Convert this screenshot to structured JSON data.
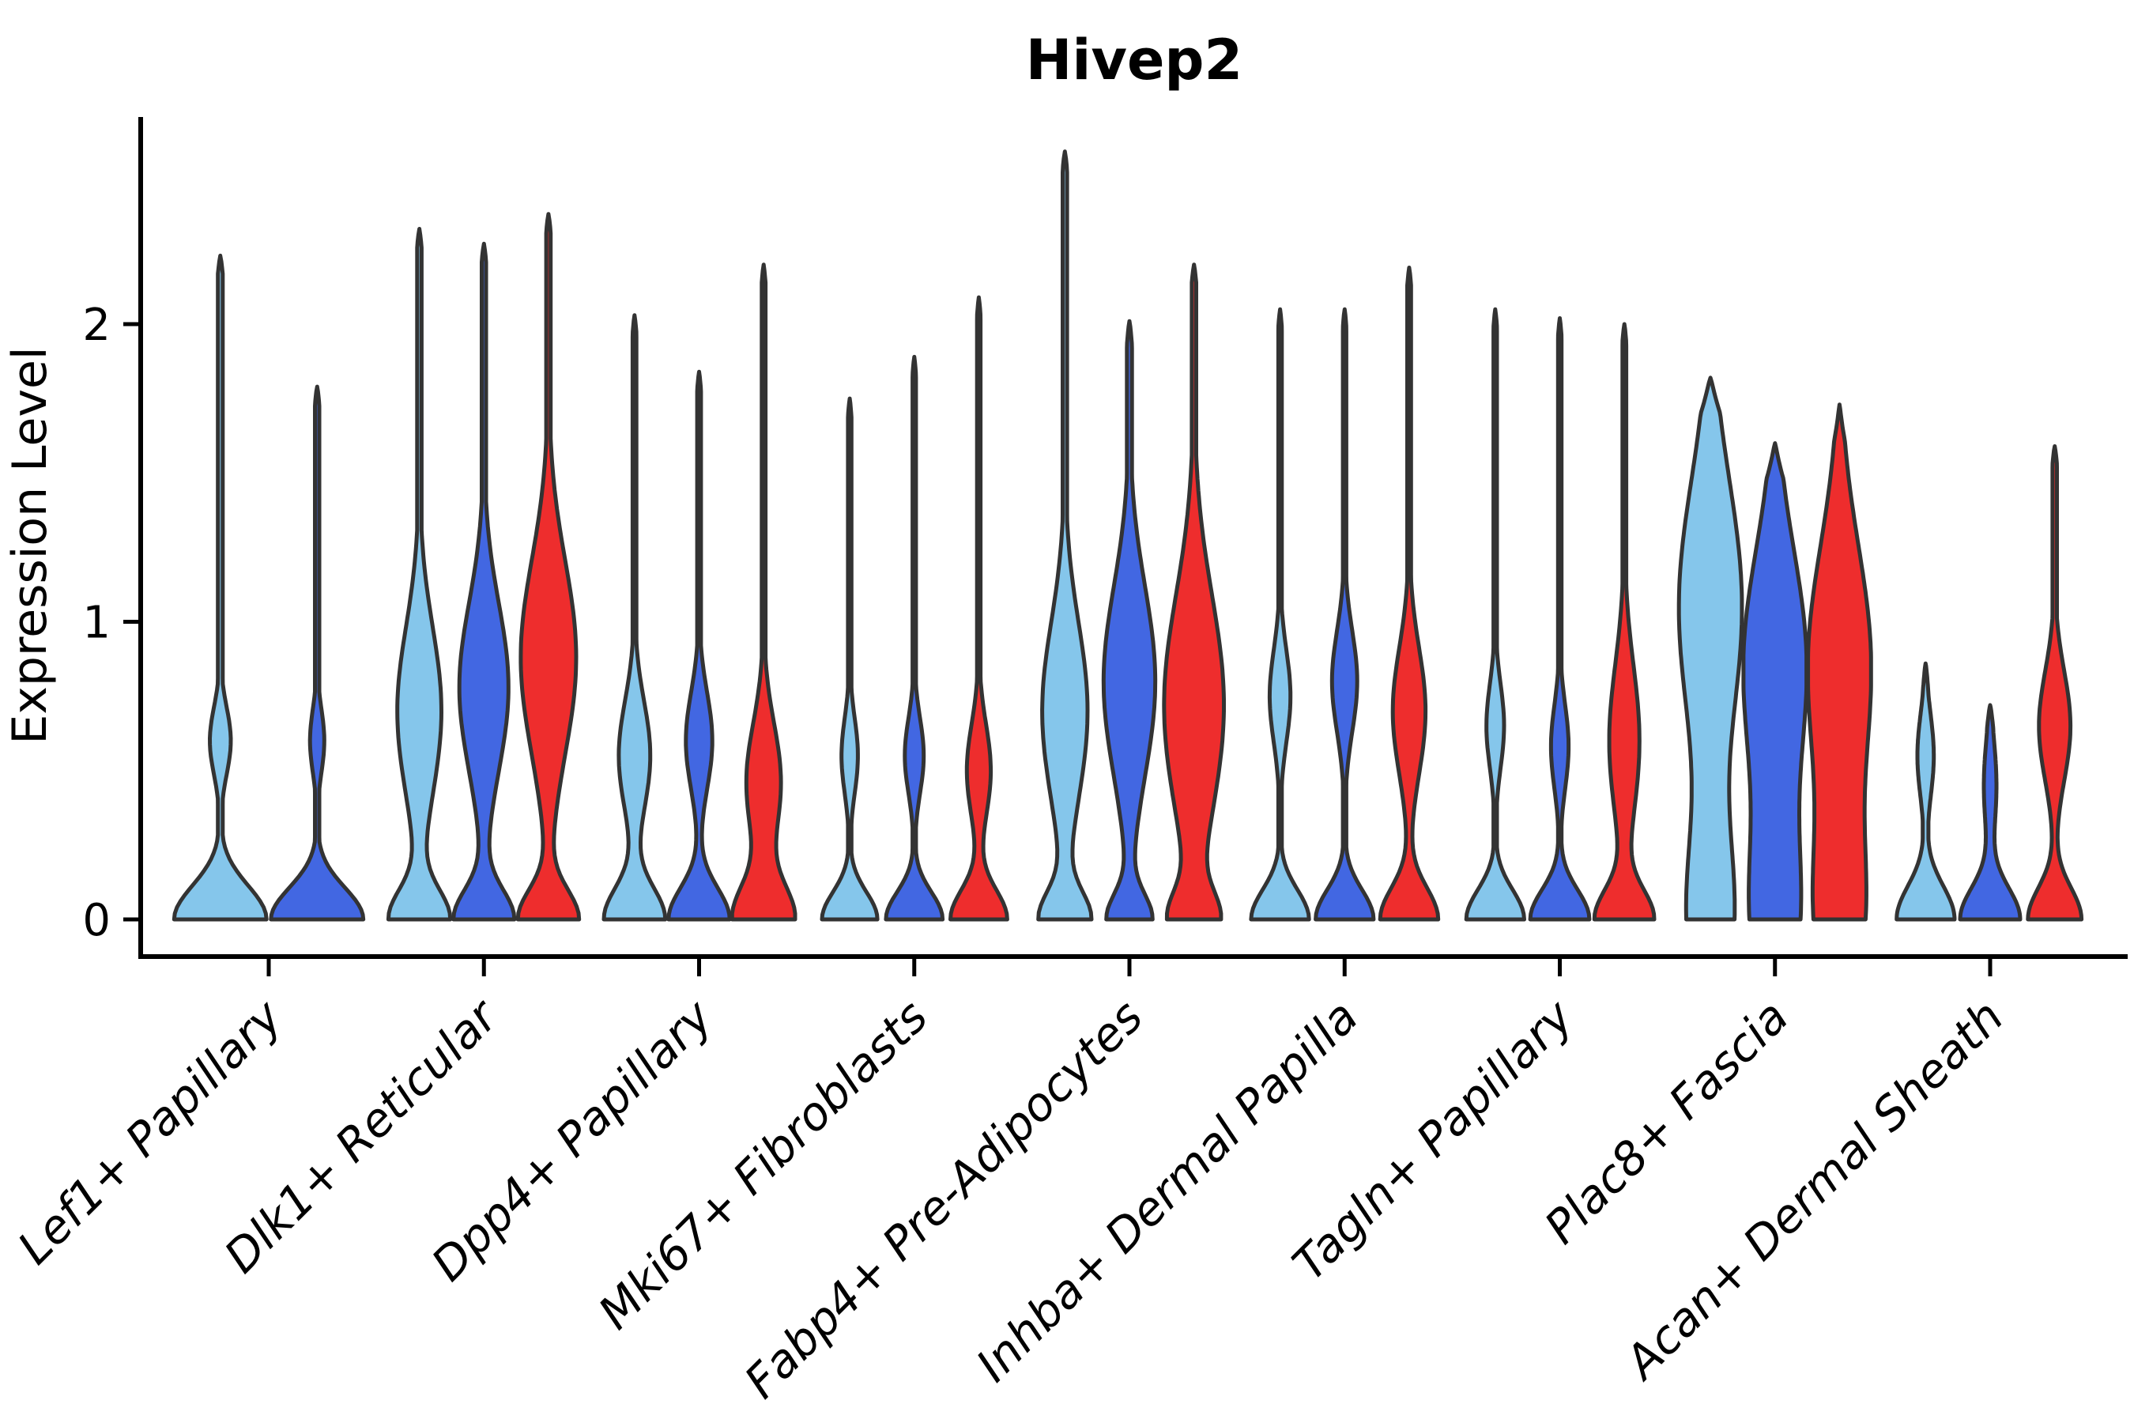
{
  "page": {
    "background": "#ffffff"
  },
  "chart_data": {
    "type": "violin",
    "title": "Hivep2",
    "ylabel": "Expression Level",
    "xlabel": "",
    "yticks": [
      "0",
      "1",
      "2"
    ],
    "ylim": [
      0,
      2.69
    ],
    "grid": false,
    "legend": null,
    "x_tick_rotation_deg": 45,
    "categories": [
      "Lef1+ Papillary",
      "Dlk1+ Reticular",
      "Dpp4+ Papillary",
      "Mki67+ Fibroblasts",
      "Fabp4+ Pre-Adipocytes",
      "Inhba+ Dermal Papilla",
      "Tagln+ Papillary",
      "Plac8+ Fascia",
      "Acan+ Dermal Sheath"
    ],
    "palette": {
      "light_blue": "#85C6EB",
      "royal_blue": "#4267E2",
      "red": "#EE2D2D",
      "violin_outline": "#333333",
      "axis": "#000000"
    },
    "groups": [
      {
        "category": "Lef1+ Papillary",
        "violins": [
          {
            "color": "light_blue",
            "max": 2.23,
            "profile": {
              "bumps": [
                [
                  0,
                  0.97,
                  0.16
                ],
                [
                  0.6,
                  0.22,
                  0.16
                ]
              ],
              "stem": 0.05,
              "tip": 0.06
            }
          },
          {
            "color": "royal_blue",
            "max": 1.79,
            "profile": {
              "bumps": [
                [
                  0,
                  0.97,
                  0.15
                ],
                [
                  0.6,
                  0.15,
                  0.15
                ]
              ],
              "stem": 0.045,
              "tip": 0.06
            }
          }
        ]
      },
      {
        "category": "Dlk1+ Reticular",
        "violins": [
          {
            "color": "light_blue",
            "max": 2.32,
            "profile": {
              "bumps": [
                [
                  0,
                  0.95,
                  0.14
                ],
                [
                  0.7,
                  0.7,
                  0.4
                ]
              ],
              "stem": 0.07,
              "tip": 0.06
            }
          },
          {
            "color": "royal_blue",
            "max": 2.27,
            "profile": {
              "bumps": [
                [
                  0,
                  0.95,
                  0.14
                ],
                [
                  0.78,
                  0.78,
                  0.4
                ]
              ],
              "stem": 0.07,
              "tip": 0.06
            }
          },
          {
            "color": "red",
            "max": 2.37,
            "profile": {
              "bumps": [
                [
                  0,
                  0.95,
                  0.14
                ],
                [
                  0.88,
                  0.88,
                  0.46
                ]
              ],
              "stem": 0.07,
              "tip": 0.06
            }
          }
        ]
      },
      {
        "category": "Dpp4+ Papillary",
        "violins": [
          {
            "color": "light_blue",
            "max": 2.03,
            "profile": {
              "bumps": [
                [
                  0,
                  0.97,
                  0.15
                ],
                [
                  0.55,
                  0.5,
                  0.26
                ]
              ],
              "stem": 0.06,
              "tip": 0.06
            }
          },
          {
            "color": "royal_blue",
            "max": 1.84,
            "profile": {
              "bumps": [
                [
                  0,
                  0.97,
                  0.15
                ],
                [
                  0.6,
                  0.42,
                  0.23
                ]
              ],
              "stem": 0.06,
              "tip": 0.06
            }
          },
          {
            "color": "red",
            "max": 2.2,
            "profile": {
              "bumps": [
                [
                  0,
                  0.97,
                  0.16
                ],
                [
                  0.46,
                  0.55,
                  0.28
                ]
              ],
              "stem": 0.06,
              "tip": 0.06
            }
          }
        ]
      },
      {
        "category": "Mki67+ Fibroblasts",
        "violins": [
          {
            "color": "light_blue",
            "max": 1.75,
            "profile": {
              "bumps": [
                [
                  0,
                  0.88,
                  0.13
                ],
                [
                  0.55,
                  0.26,
                  0.18
                ]
              ],
              "stem": 0.055,
              "tip": 0.06
            }
          },
          {
            "color": "royal_blue",
            "max": 1.89,
            "profile": {
              "bumps": [
                [
                  0,
                  0.9,
                  0.13
                ],
                [
                  0.55,
                  0.3,
                  0.18
                ]
              ],
              "stem": 0.055,
              "tip": 0.06
            }
          },
          {
            "color": "red",
            "max": 2.09,
            "profile": {
              "bumps": [
                [
                  0,
                  0.9,
                  0.14
                ],
                [
                  0.5,
                  0.38,
                  0.22
                ]
              ],
              "stem": 0.055,
              "tip": 0.06
            }
          }
        ]
      },
      {
        "category": "Fabp4+ Pre-Adipocytes",
        "violins": [
          {
            "color": "light_blue",
            "max": 2.58,
            "profile": {
              "bumps": [
                [
                  0,
                  0.8,
                  0.13
                ],
                [
                  0.7,
                  0.72,
                  0.42
                ]
              ],
              "stem": 0.07,
              "tip": 0.06
            }
          },
          {
            "color": "royal_blue",
            "max": 2.01,
            "profile": {
              "bumps": [
                [
                  0,
                  0.7,
                  0.12
                ],
                [
                  0.8,
                  0.82,
                  0.45
                ]
              ],
              "stem": 0.08,
              "tip": 0.08
            }
          },
          {
            "color": "red",
            "max": 2.2,
            "profile": {
              "bumps": [
                [
                  0,
                  0.72,
                  0.13
                ],
                [
                  0.72,
                  0.95,
                  0.52
                ]
              ],
              "stem": 0.07,
              "tip": 0.06
            }
          }
        ]
      },
      {
        "category": "Inhba+ Dermal Papilla",
        "violins": [
          {
            "color": "light_blue",
            "max": 2.05,
            "profile": {
              "bumps": [
                [
                  0,
                  0.92,
                  0.14
                ],
                [
                  0.75,
                  0.33,
                  0.22
                ]
              ],
              "stem": 0.055,
              "tip": 0.06
            }
          },
          {
            "color": "royal_blue",
            "max": 2.05,
            "profile": {
              "bumps": [
                [
                  0,
                  0.92,
                  0.14
                ],
                [
                  0.8,
                  0.4,
                  0.24
                ]
              ],
              "stem": 0.055,
              "tip": 0.06
            }
          },
          {
            "color": "red",
            "max": 2.19,
            "profile": {
              "bumps": [
                [
                  0,
                  0.92,
                  0.15
                ],
                [
                  0.7,
                  0.52,
                  0.3
                ]
              ],
              "stem": 0.06,
              "tip": 0.06
            }
          }
        ]
      },
      {
        "category": "Tagln+ Papillary",
        "violins": [
          {
            "color": "light_blue",
            "max": 2.05,
            "profile": {
              "bumps": [
                [
                  0,
                  0.92,
                  0.14
                ],
                [
                  0.65,
                  0.28,
                  0.2
                ]
              ],
              "stem": 0.055,
              "tip": 0.06
            }
          },
          {
            "color": "royal_blue",
            "max": 2.02,
            "profile": {
              "bumps": [
                [
                  0,
                  0.94,
                  0.14
                ],
                [
                  0.58,
                  0.28,
                  0.2
                ]
              ],
              "stem": 0.055,
              "tip": 0.06
            }
          },
          {
            "color": "red",
            "max": 2.0,
            "profile": {
              "bumps": [
                [
                  0,
                  0.92,
                  0.14
                ],
                [
                  0.6,
                  0.48,
                  0.36
                ]
              ],
              "stem": 0.06,
              "tip": 0.06
            }
          }
        ]
      },
      {
        "category": "Plac8+ Fascia",
        "violins": [
          {
            "color": "light_blue",
            "max": 1.82,
            "profile": {
              "bumps": [
                [
                  0,
                  0.72,
                  0.42
                ],
                [
                  1.05,
                  1.0,
                  0.6
                ]
              ],
              "stem": 0.07,
              "tip": 0.12
            }
          },
          {
            "color": "royal_blue",
            "max": 1.6,
            "profile": {
              "bumps": [
                [
                  0,
                  0.72,
                  0.4
                ],
                [
                  0.85,
                  1.0,
                  0.55
                ]
              ],
              "stem": 0.07,
              "tip": 0.12
            }
          },
          {
            "color": "red",
            "max": 1.73,
            "profile": {
              "bumps": [
                [
                  0,
                  0.72,
                  0.4
                ],
                [
                  0.85,
                  1.0,
                  0.57
                ]
              ],
              "stem": 0.07,
              "tip": 0.12
            }
          }
        ]
      },
      {
        "category": "Acan+ Dermal Sheath",
        "violins": [
          {
            "color": "light_blue",
            "max": 0.86,
            "profile": {
              "bumps": [
                [
                  0,
                  0.92,
                  0.16
                ],
                [
                  0.55,
                  0.26,
                  0.2
                ]
              ],
              "stem": 0.09,
              "tip": 0.1
            }
          },
          {
            "color": "royal_blue",
            "max": 0.72,
            "profile": {
              "bumps": [
                [
                  0,
                  0.95,
                  0.15
                ],
                [
                  0.45,
                  0.2,
                  0.22
                ]
              ],
              "stem": 0.1,
              "tip": 0.08
            }
          },
          {
            "color": "red",
            "max": 1.59,
            "profile": {
              "bumps": [
                [
                  0,
                  0.85,
                  0.15
                ],
                [
                  0.65,
                  0.5,
                  0.26
                ]
              ],
              "stem": 0.07,
              "tip": 0.06
            }
          }
        ]
      }
    ]
  }
}
